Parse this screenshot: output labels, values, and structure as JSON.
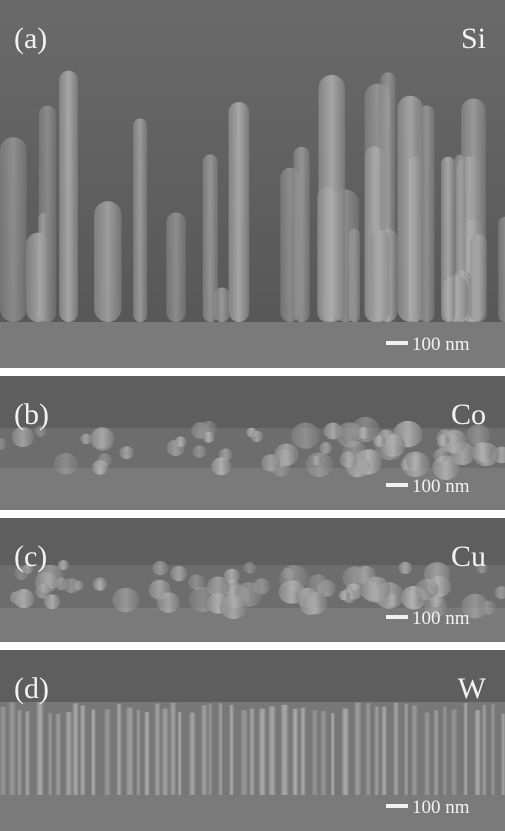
{
  "panels": [
    {
      "label": "(a)",
      "material": "Si",
      "scale_bar": "100 nm"
    },
    {
      "label": "(b)",
      "material": "Co",
      "scale_bar": "100 nm"
    },
    {
      "label": "(c)",
      "material": "Cu",
      "scale_bar": "100 nm"
    },
    {
      "label": "(d)",
      "material": "W",
      "scale_bar": "100 nm"
    }
  ]
}
